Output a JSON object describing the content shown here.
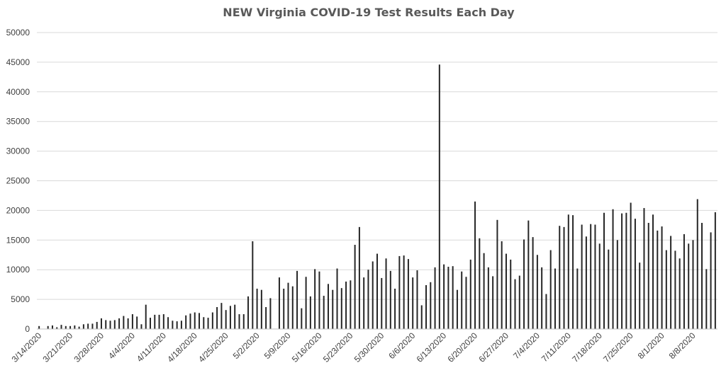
{
  "chart_data": {
    "type": "bar",
    "title": "NEW Virginia COVID-19 Test Results Each Day",
    "ylim": [
      0,
      50000
    ],
    "yticks": [
      "0",
      "5000",
      "10000",
      "15000",
      "20000",
      "25000",
      "30000",
      "35000",
      "40000",
      "45000",
      "50000"
    ],
    "xtick_labels": [
      "3/14/2020",
      "3/21/2020",
      "3/28/2020",
      "4/4/2020",
      "4/11/2020",
      "4/18/2020",
      "4/25/2020",
      "5/2/2020",
      "5/9/2020",
      "5/16/2020",
      "5/23/2020",
      "5/30/2020",
      "6/6/2020",
      "6/13/2020",
      "6/20/2020",
      "6/27/2020",
      "7/4/2020",
      "7/11/2020",
      "7/18/2020",
      "7/25/2020",
      "8/1/2020",
      "8/8/2020"
    ],
    "grid": true,
    "bar_color": "#262626",
    "values": [
      500,
      0,
      500,
      600,
      300,
      700,
      500,
      500,
      600,
      400,
      800,
      900,
      900,
      1200,
      1800,
      1500,
      1400,
      1500,
      1800,
      2200,
      1800,
      2500,
      2100,
      800,
      4100,
      1900,
      2400,
      2400,
      2500,
      2000,
      1400,
      1300,
      1400,
      2300,
      2600,
      2800,
      2700,
      2000,
      1900,
      2800,
      3700,
      4400,
      3200,
      3900,
      4100,
      2500,
      2500,
      5500,
      14800,
      6800,
      6600,
      3700,
      5200,
      0,
      8700,
      6800,
      7800,
      7200,
      9800,
      3500,
      8800,
      5500,
      10100,
      9700,
      5600,
      7600,
      6600,
      10200,
      6900,
      8000,
      8200,
      14200,
      17200,
      8700,
      10000,
      11400,
      12700,
      8600,
      11900,
      9800,
      6800,
      12300,
      12400,
      11800,
      8700,
      9900,
      4000,
      7400,
      7900,
      10400,
      44600,
      10900,
      10500,
      10600,
      6600,
      9700,
      8800,
      11700,
      21500,
      15300,
      12800,
      10400,
      8900,
      18400,
      14800,
      12700,
      11700,
      8400,
      9000,
      15100,
      18300,
      15500,
      12500,
      10400,
      5900,
      13300,
      10200,
      17400,
      17200,
      19300,
      19200,
      10200,
      17600,
      15600,
      17700,
      17600,
      14400,
      19600,
      13400,
      20200,
      15000,
      19500,
      19600,
      21300,
      18600,
      11200,
      20400,
      17900,
      19300,
      16600,
      17300,
      13300,
      15700,
      13200,
      11900,
      16000,
      14400,
      15000,
      21900,
      17900,
      10100,
      16300,
      19700
    ]
  }
}
